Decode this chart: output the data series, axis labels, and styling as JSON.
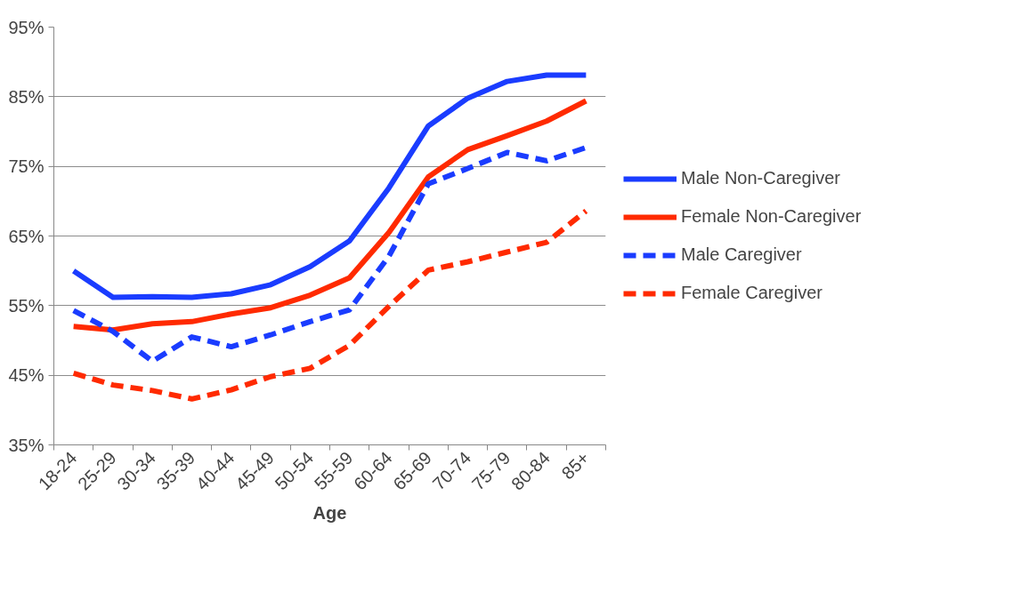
{
  "chart_data": {
    "type": "line",
    "xlabel": "Age",
    "categories": [
      "18-24",
      "25-29",
      "30-34",
      "35-39",
      "40-44",
      "45-49",
      "50-54",
      "55-59",
      "60-64",
      "65-69",
      "70-74",
      "75-79",
      "80-84",
      "85+"
    ],
    "ylim": [
      35,
      95
    ],
    "yticks": [
      {
        "value": 35,
        "label": "35%"
      },
      {
        "value": 45,
        "label": "45%"
      },
      {
        "value": 55,
        "label": "55%"
      },
      {
        "value": 65,
        "label": "65%"
      },
      {
        "value": 75,
        "label": "75%"
      },
      {
        "value": 85,
        "label": "85%"
      },
      {
        "value": 95,
        "label": "95%"
      }
    ],
    "grid": "y",
    "legend": "right",
    "marker": "none",
    "series": [
      {
        "name": "Male Non-Caregiver",
        "color": "#1a3cff",
        "line_style": "solid",
        "values": [
          60.0,
          56.2,
          56.3,
          56.2,
          56.7,
          58.0,
          60.6,
          64.3,
          71.9,
          80.8,
          84.8,
          87.2,
          88.1,
          88.1
        ]
      },
      {
        "name": "Female Non-Caregiver",
        "color": "#ff2a00",
        "line_style": "solid",
        "values": [
          52.0,
          51.5,
          52.4,
          52.7,
          53.8,
          54.7,
          56.5,
          59.0,
          65.5,
          73.5,
          77.4,
          79.4,
          81.5,
          84.4
        ]
      },
      {
        "name": "Male Caregiver",
        "color": "#1a3cff",
        "line_style": "dashed",
        "values": [
          54.3,
          51.3,
          47.0,
          50.5,
          49.1,
          50.8,
          52.7,
          54.4,
          62.1,
          72.5,
          74.7,
          77.0,
          75.8,
          77.7
        ]
      },
      {
        "name": "Female Caregiver",
        "color": "#ff2a00",
        "line_style": "dashed",
        "values": [
          45.3,
          43.6,
          42.8,
          41.6,
          42.9,
          44.8,
          46.0,
          49.3,
          54.9,
          60.1,
          61.3,
          62.7,
          64.1,
          68.6
        ]
      }
    ]
  }
}
